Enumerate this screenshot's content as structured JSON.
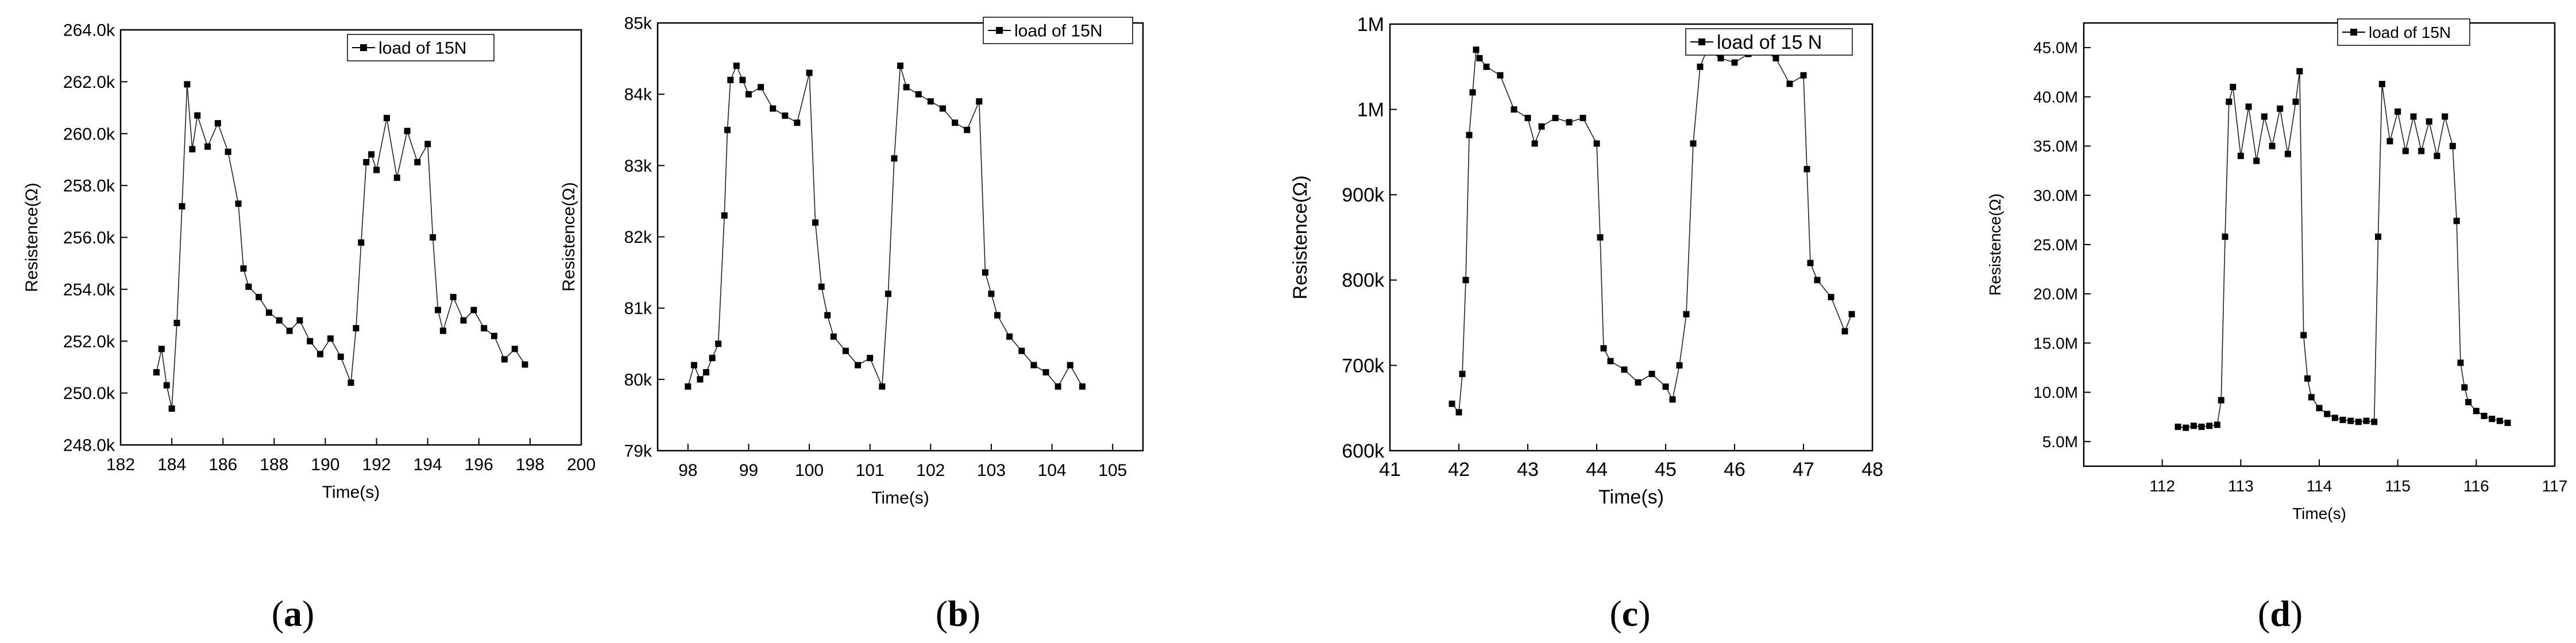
{
  "chart_data": [
    {
      "type": "line",
      "panel_label": "(a)",
      "xlabel": "Time(s)",
      "ylabel": "Resistence(Ω)",
      "legend": "load of 15N",
      "legend_position": "top-right",
      "xlim": [
        182,
        200
      ],
      "ylim": [
        248.0,
        264.0
      ],
      "xticks": [
        182,
        184,
        186,
        188,
        190,
        192,
        194,
        196,
        198,
        200
      ],
      "xtick_labels": [
        "182",
        "184",
        "186",
        "188",
        "190",
        "192",
        "194",
        "196",
        "198",
        "200"
      ],
      "yticks": [
        248,
        250,
        252,
        254,
        256,
        258,
        260,
        262,
        264
      ],
      "ytick_labels": [
        "248.0k",
        "250.0k",
        "252.0k",
        "254.0k",
        "256.0k",
        "258.0k",
        "260.0k",
        "262.0k",
        "264.0k"
      ],
      "series": [
        {
          "name": "load of 15N",
          "unit": "kΩ",
          "x": [
            183.4,
            183.6,
            183.8,
            184.0,
            184.2,
            184.4,
            184.6,
            184.8,
            185.0,
            185.4,
            185.8,
            186.2,
            186.6,
            186.8,
            187.0,
            187.4,
            187.8,
            188.2,
            188.6,
            189.0,
            189.4,
            189.8,
            190.2,
            190.6,
            191.0,
            191.2,
            191.4,
            191.6,
            191.8,
            192.0,
            192.4,
            192.8,
            193.2,
            193.6,
            194.0,
            194.2,
            194.4,
            194.6,
            195.0,
            195.4,
            195.8,
            196.2,
            196.6,
            197.0,
            197.4,
            197.8
          ],
          "y": [
            250.8,
            251.7,
            250.3,
            249.4,
            252.7,
            257.2,
            261.9,
            259.4,
            260.7,
            259.5,
            260.4,
            259.3,
            257.3,
            254.8,
            254.1,
            253.7,
            253.1,
            252.8,
            252.4,
            252.8,
            252.0,
            251.5,
            252.1,
            251.4,
            250.4,
            252.5,
            255.8,
            258.9,
            259.2,
            258.6,
            260.6,
            258.3,
            260.1,
            258.9,
            259.6,
            256.0,
            253.2,
            252.4,
            253.7,
            252.8,
            253.2,
            252.5,
            252.2,
            251.3,
            251.7,
            251.1
          ]
        }
      ]
    },
    {
      "type": "line",
      "panel_label": "(b)",
      "xlabel": "Time(s)",
      "ylabel": "Resistence(Ω)",
      "legend": "load of 15N",
      "legend_position": "top-right",
      "xlim": [
        97.5,
        105.5
      ],
      "ylim": [
        79,
        85
      ],
      "xticks": [
        98,
        99,
        100,
        101,
        102,
        103,
        104,
        105
      ],
      "xtick_labels": [
        "98",
        "99",
        "100",
        "101",
        "102",
        "103",
        "104",
        "105"
      ],
      "yticks": [
        79,
        80,
        81,
        82,
        83,
        84,
        85
      ],
      "ytick_labels": [
        "79k",
        "80k",
        "81k",
        "82k",
        "83k",
        "84k",
        "85k"
      ],
      "series": [
        {
          "name": "load of 15N",
          "unit": "kΩ",
          "x": [
            98.0,
            98.1,
            98.2,
            98.3,
            98.4,
            98.5,
            98.6,
            98.65,
            98.7,
            98.8,
            98.9,
            99.0,
            99.2,
            99.4,
            99.6,
            99.8,
            100.0,
            100.1,
            100.2,
            100.3,
            100.4,
            100.6,
            100.8,
            101.0,
            101.2,
            101.3,
            101.4,
            101.5,
            101.6,
            101.8,
            102.0,
            102.2,
            102.4,
            102.6,
            102.8,
            102.9,
            103.0,
            103.1,
            103.3,
            103.5,
            103.7,
            103.9,
            104.1,
            104.3,
            104.5
          ],
          "y": [
            79.9,
            80.2,
            80.0,
            80.1,
            80.3,
            80.5,
            82.3,
            83.5,
            84.2,
            84.4,
            84.2,
            84.0,
            84.1,
            83.8,
            83.7,
            83.6,
            84.3,
            82.2,
            81.3,
            80.9,
            80.6,
            80.4,
            80.2,
            80.3,
            79.9,
            81.2,
            83.1,
            84.4,
            84.1,
            84.0,
            83.9,
            83.8,
            83.6,
            83.5,
            83.9,
            81.5,
            81.2,
            80.9,
            80.6,
            80.4,
            80.2,
            80.1,
            79.9,
            80.2,
            79.9
          ]
        }
      ]
    },
    {
      "type": "line",
      "panel_label": "(c)",
      "xlabel": "Time(s)",
      "ylabel": "Resistence(Ω)",
      "legend": "load of 15 N",
      "legend_position": "top-right",
      "xlim": [
        41,
        48
      ],
      "ylim": [
        600,
        1100
      ],
      "xticks": [
        41,
        42,
        43,
        44,
        45,
        46,
        47,
        48
      ],
      "xtick_labels": [
        "41",
        "42",
        "43",
        "44",
        "45",
        "46",
        "47",
        "48"
      ],
      "yticks": [
        600,
        700,
        800,
        900,
        1000,
        1100
      ],
      "ytick_labels": [
        "600k",
        "700k",
        "800k",
        "900k",
        "1M",
        "1M"
      ],
      "series": [
        {
          "name": "load of 15 N",
          "unit": "kΩ",
          "x": [
            41.9,
            42.0,
            42.05,
            42.1,
            42.15,
            42.2,
            42.25,
            42.3,
            42.4,
            42.6,
            42.8,
            43.0,
            43.1,
            43.2,
            43.4,
            43.6,
            43.8,
            44.0,
            44.05,
            44.1,
            44.2,
            44.4,
            44.6,
            44.8,
            45.0,
            45.1,
            45.2,
            45.3,
            45.4,
            45.5,
            45.6,
            45.8,
            46.0,
            46.2,
            46.4,
            46.6,
            46.8,
            47.0,
            47.05,
            47.1,
            47.2,
            47.4,
            47.6,
            47.7
          ],
          "y": [
            655,
            645,
            690,
            800,
            970,
            1020,
            1070,
            1060,
            1050,
            1040,
            1000,
            990,
            960,
            980,
            990,
            985,
            990,
            960,
            850,
            720,
            705,
            695,
            680,
            690,
            675,
            660,
            700,
            760,
            960,
            1050,
            1070,
            1060,
            1055,
            1065,
            1070,
            1060,
            1030,
            1040,
            930,
            820,
            800,
            780,
            740,
            760
          ]
        }
      ]
    },
    {
      "type": "line",
      "panel_label": "(d)",
      "xlabel": "Time(s)",
      "ylabel": "Resistence(Ω)",
      "legend": "load of 15N",
      "legend_position": "top-right",
      "xlim": [
        111,
        117
      ],
      "ylim": [
        2.5,
        47.5
      ],
      "xticks": [
        112,
        113,
        114,
        115,
        116,
        117
      ],
      "xtick_labels": [
        "112",
        "113",
        "114",
        "115",
        "116",
        "117"
      ],
      "yticks": [
        5,
        10,
        15,
        20,
        25,
        30,
        35,
        40,
        45
      ],
      "ytick_labels": [
        "5.0M",
        "10.0M",
        "15.0M",
        "20.0M",
        "25.0M",
        "30.0M",
        "35.0M",
        "40.0M",
        "45.0M"
      ],
      "series": [
        {
          "name": "load of 15N",
          "unit": "MΩ",
          "x": [
            112.2,
            112.3,
            112.4,
            112.5,
            112.6,
            112.7,
            112.75,
            112.8,
            112.85,
            112.9,
            113.0,
            113.1,
            113.2,
            113.3,
            113.4,
            113.5,
            113.6,
            113.7,
            113.75,
            113.8,
            113.85,
            113.9,
            114.0,
            114.1,
            114.2,
            114.3,
            114.4,
            114.5,
            114.6,
            114.7,
            114.75,
            114.8,
            114.9,
            115.0,
            115.1,
            115.2,
            115.3,
            115.4,
            115.5,
            115.6,
            115.7,
            115.75,
            115.8,
            115.85,
            115.9,
            116.0,
            116.1,
            116.2,
            116.3,
            116.4
          ],
          "y": [
            6.5,
            6.4,
            6.6,
            6.5,
            6.6,
            6.7,
            9.2,
            25.8,
            39.5,
            41.0,
            34.0,
            39.0,
            33.5,
            38.0,
            35.0,
            38.8,
            34.2,
            39.5,
            42.6,
            15.8,
            11.4,
            9.5,
            8.4,
            7.8,
            7.4,
            7.2,
            7.1,
            7.0,
            7.1,
            7.0,
            25.8,
            41.3,
            35.5,
            38.5,
            34.5,
            38.0,
            34.5,
            37.5,
            34.0,
            38.0,
            35.0,
            27.4,
            13.0,
            10.5,
            9.0,
            8.1,
            7.6,
            7.3,
            7.1,
            6.9
          ]
        }
      ]
    }
  ]
}
